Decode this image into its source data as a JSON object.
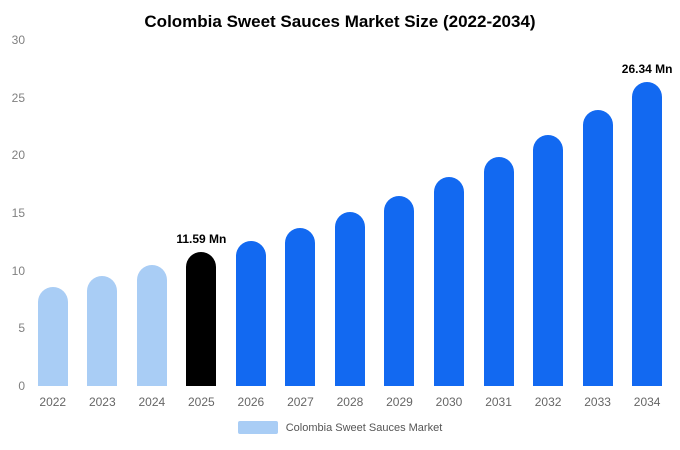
{
  "title": "Colombia Sweet Sauces Market Size (2022-2034)",
  "legend": {
    "label": "Colombia Sweet Sauces Market",
    "swatch_color": "#A9CDF5"
  },
  "colors": {
    "light_blue": "#A9CDF5",
    "accent_blue": "#1269F1",
    "highlight_black": "#000000"
  },
  "chart_data": {
    "type": "bar",
    "title": "Colombia Sweet Sauces Market Size (2022-2034)",
    "xlabel": "",
    "ylabel": "",
    "categories": [
      "2022",
      "2023",
      "2024",
      "2025",
      "2026",
      "2027",
      "2028",
      "2029",
      "2030",
      "2031",
      "2032",
      "2033",
      "2034"
    ],
    "values": [
      8.6,
      9.5,
      10.5,
      11.59,
      12.6,
      13.7,
      15.1,
      16.5,
      18.1,
      19.9,
      21.8,
      23.9,
      26.34
    ],
    "bar_colors": [
      "#A9CDF5",
      "#A9CDF5",
      "#A9CDF5",
      "#000000",
      "#1269F1",
      "#1269F1",
      "#1269F1",
      "#1269F1",
      "#1269F1",
      "#1269F1",
      "#1269F1",
      "#1269F1",
      "#1269F1"
    ],
    "labels": {
      "2025": "11.59 Mn",
      "2034": "26.34 Mn"
    },
    "ylim": [
      0,
      30
    ],
    "yticks": [
      0,
      5,
      10,
      15,
      20,
      25,
      30
    ],
    "grid": false,
    "legend_position": "bottom",
    "legend_entries": [
      "Colombia Sweet Sauces Market"
    ]
  }
}
